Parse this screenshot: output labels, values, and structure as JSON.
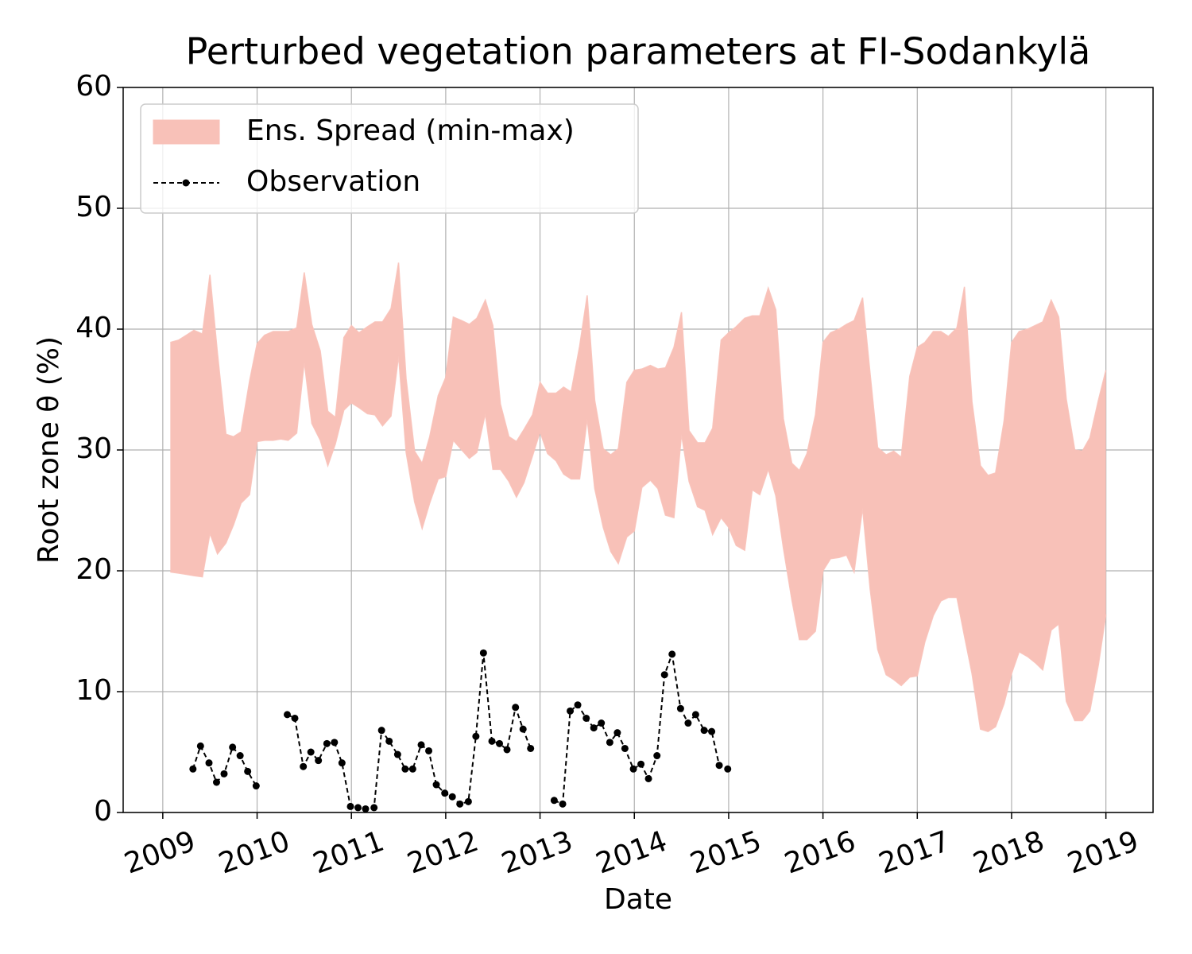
{
  "chart_data": {
    "type": "line",
    "title": "Perturbed vegetation parameters at FI-Sodankylä",
    "xlabel": "Date",
    "ylabel": "Root zone θ  (%)",
    "xlim": [
      2008.58,
      2019.5
    ],
    "ylim": [
      0,
      60
    ],
    "xticks": [
      2009,
      2010,
      2011,
      2012,
      2013,
      2014,
      2015,
      2016,
      2017,
      2018,
      2019
    ],
    "yticks": [
      0,
      10,
      20,
      30,
      40,
      50,
      60
    ],
    "grid": true,
    "legend": "upper left",
    "series": [
      {
        "name": "Ens. Spread (min-max)",
        "type": "band",
        "color": "#f8c1b8",
        "x": [
          2009.08,
          2009.17,
          2009.25,
          2009.33,
          2009.42,
          2009.5,
          2009.58,
          2009.67,
          2009.75,
          2009.83,
          2009.92,
          2010.0,
          2010.08,
          2010.17,
          2010.25,
          2010.33,
          2010.42,
          2010.5,
          2010.58,
          2010.67,
          2010.75,
          2010.83,
          2010.92,
          2011.0,
          2011.08,
          2011.17,
          2011.25,
          2011.33,
          2011.42,
          2011.5,
          2011.58,
          2011.67,
          2011.75,
          2011.83,
          2011.92,
          2012.0,
          2012.08,
          2012.17,
          2012.25,
          2012.33,
          2012.42,
          2012.5,
          2012.58,
          2012.67,
          2012.75,
          2012.83,
          2012.92,
          2013.0,
          2013.08,
          2013.17,
          2013.25,
          2013.33,
          2013.42,
          2013.5,
          2013.58,
          2013.67,
          2013.75,
          2013.83,
          2013.92,
          2014.0,
          2014.08,
          2014.17,
          2014.25,
          2014.33,
          2014.42,
          2014.5,
          2014.58,
          2014.67,
          2014.75,
          2014.83,
          2014.92,
          2015.0,
          2015.08,
          2015.17,
          2015.25,
          2015.33,
          2015.42,
          2015.5,
          2015.58,
          2015.67,
          2015.75,
          2015.83,
          2015.92,
          2016.0,
          2016.08,
          2016.17,
          2016.25,
          2016.33,
          2016.42,
          2016.5,
          2016.58,
          2016.67,
          2016.75,
          2016.83,
          2016.92,
          2017.0,
          2017.08,
          2017.17,
          2017.25,
          2017.33,
          2017.42,
          2017.5,
          2017.58,
          2017.67,
          2017.75,
          2017.83,
          2017.92,
          2018.0,
          2018.08,
          2018.17,
          2018.25,
          2018.33,
          2018.42,
          2018.5,
          2018.58,
          2018.67,
          2018.75,
          2018.83,
          2018.92,
          2019.0
        ],
        "upper": [
          38.9,
          39.1,
          39.5,
          39.9,
          39.6,
          44.5,
          38.0,
          31.3,
          31.1,
          31.5,
          35.7,
          38.8,
          39.5,
          39.8,
          39.8,
          39.8,
          40.1,
          44.7,
          40.4,
          38.2,
          33.2,
          32.7,
          39.3,
          40.3,
          39.7,
          40.2,
          40.6,
          40.6,
          41.7,
          45.5,
          35.9,
          29.9,
          28.9,
          31.1,
          34.5,
          36.0,
          41.0,
          40.7,
          40.4,
          40.9,
          42.4,
          40.3,
          33.8,
          31.1,
          30.7,
          31.7,
          32.9,
          35.6,
          34.7,
          34.7,
          35.2,
          34.8,
          38.6,
          42.8,
          34.1,
          30.1,
          29.6,
          30.1,
          35.6,
          36.6,
          36.7,
          37.0,
          36.7,
          36.8,
          38.5,
          41.4,
          31.6,
          30.6,
          30.6,
          31.8,
          39.1,
          39.7,
          40.2,
          40.9,
          41.1,
          41.1,
          43.4,
          41.6,
          32.6,
          28.9,
          28.3,
          29.7,
          32.9,
          38.9,
          39.7,
          40.0,
          40.4,
          40.7,
          42.6,
          36.3,
          30.2,
          29.6,
          29.9,
          29.4,
          36.1,
          38.5,
          38.9,
          39.8,
          39.8,
          39.4,
          40.1,
          43.5,
          34.0,
          28.7,
          27.9,
          28.1,
          32.4,
          38.9,
          39.8,
          40.0,
          40.3,
          40.6,
          42.4,
          41.0,
          34.2,
          30.0,
          29.9,
          31.0,
          34.1,
          36.6
        ],
        "lower": [
          19.9,
          19.8,
          19.7,
          19.6,
          19.5,
          23.1,
          21.4,
          22.3,
          23.8,
          25.6,
          26.3,
          30.7,
          30.8,
          30.8,
          30.9,
          30.8,
          31.4,
          37.3,
          32.2,
          30.8,
          28.7,
          30.5,
          33.3,
          33.9,
          33.5,
          33.0,
          32.9,
          32.0,
          32.8,
          37.8,
          29.8,
          25.7,
          23.5,
          25.6,
          27.6,
          27.8,
          30.8,
          30.0,
          29.3,
          29.8,
          33.0,
          28.4,
          28.4,
          27.4,
          26.1,
          27.3,
          29.5,
          31.5,
          29.7,
          29.1,
          28.0,
          27.6,
          27.6,
          32.6,
          26.8,
          23.6,
          21.6,
          20.6,
          22.8,
          23.3,
          26.9,
          27.5,
          26.8,
          24.6,
          24.4,
          31.3,
          27.4,
          25.3,
          25.0,
          23.0,
          24.4,
          23.6,
          22.1,
          21.7,
          26.7,
          26.3,
          28.4,
          26.2,
          21.9,
          17.6,
          14.3,
          14.3,
          15.0,
          20.0,
          21.0,
          21.1,
          21.3,
          19.9,
          25.2,
          18.5,
          13.5,
          11.4,
          11.0,
          10.5,
          11.2,
          11.3,
          14.1,
          16.3,
          17.5,
          17.8,
          17.8,
          14.6,
          11.5,
          6.9,
          6.7,
          7.1,
          9.0,
          11.5,
          13.3,
          12.9,
          12.4,
          11.8,
          15.1,
          15.6,
          9.2,
          7.6,
          7.6,
          8.4,
          12.2,
          16.4
        ]
      },
      {
        "name": "Observation",
        "type": "line",
        "color": "#000000",
        "x": [
          2009.32,
          2009.4,
          2009.49,
          2009.57,
          2009.65,
          2009.74,
          2009.82,
          2009.9,
          2009.99,
          2010.07,
          2010.15,
          2010.24,
          2010.32,
          2010.4,
          2010.49,
          2010.57,
          2010.65,
          2010.74,
          2010.82,
          2010.9,
          2010.99,
          2011.07,
          2011.15,
          2011.24,
          2011.32,
          2011.4,
          2011.49,
          2011.57,
          2011.65,
          2011.74,
          2011.82,
          2011.9,
          2011.99,
          2012.07,
          2012.15,
          2012.24,
          2012.32,
          2012.4,
          2012.49,
          2012.57,
          2012.65,
          2012.74,
          2012.82,
          2012.9,
          2012.99,
          2013.07,
          2013.15,
          2013.24,
          2013.32,
          2013.4,
          2013.49,
          2013.57,
          2013.65,
          2013.74,
          2013.82,
          2013.9,
          2013.99,
          2014.07,
          2014.15,
          2014.24,
          2014.32,
          2014.4,
          2014.49,
          2014.57,
          2014.65,
          2014.74,
          2014.82,
          2014.9,
          2014.99
        ],
        "values": [
          3.6,
          5.5,
          4.1,
          2.5,
          3.2,
          5.4,
          4.7,
          3.4,
          2.2,
          null,
          null,
          null,
          8.1,
          7.8,
          3.8,
          5.0,
          4.3,
          5.7,
          5.8,
          4.1,
          0.5,
          0.4,
          0.3,
          0.4,
          6.8,
          5.9,
          4.8,
          3.6,
          3.6,
          5.6,
          5.1,
          2.3,
          1.6,
          1.3,
          0.7,
          0.9,
          6.3,
          13.2,
          5.9,
          5.7,
          5.2,
          8.7,
          6.9,
          5.3,
          null,
          null,
          1.0,
          0.7,
          8.4,
          8.9,
          7.8,
          7.0,
          7.4,
          5.8,
          6.6,
          5.3,
          3.6,
          4.0,
          2.8,
          4.7,
          11.4,
          13.1,
          8.6,
          7.4,
          8.1,
          6.8,
          6.7,
          3.9,
          3.6
        ]
      }
    ]
  }
}
